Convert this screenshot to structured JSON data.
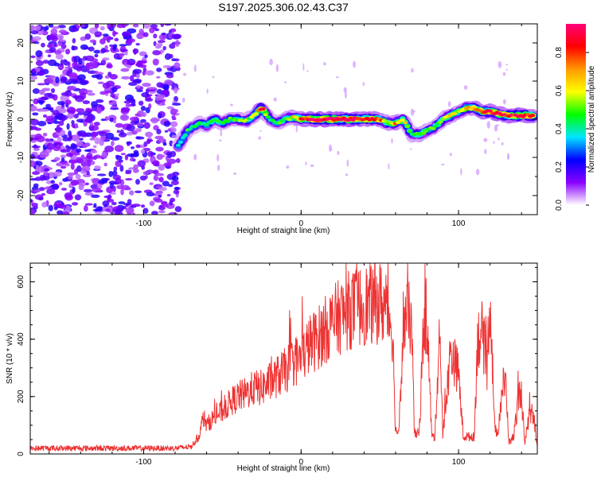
{
  "figure": {
    "title": "S197.2025.306.02.43.C37"
  },
  "chart_data": [
    {
      "type": "heatmap",
      "title": "S197.2025.306.02.43.C37",
      "xlabel": "Height of straight line (km)",
      "ylabel": "Frequency (Hz)",
      "xlim": [
        -172,
        150
      ],
      "ylim": [
        -25,
        25
      ],
      "xticks": [
        -100,
        0,
        100
      ],
      "yticks": [
        -20,
        -10,
        0,
        10,
        20
      ],
      "description_signal": "noise below about -80 km; a narrow band near 0 Hz from -80 km to 150 km",
      "ridge": {
        "x": [
          -78,
          -72,
          -65,
          -60,
          -55,
          -50,
          -45,
          -40,
          -35,
          -30,
          -25,
          -20,
          -15,
          -10,
          -5,
          0,
          10,
          20,
          30,
          40,
          50,
          55,
          60,
          65,
          70,
          75,
          80,
          85,
          90,
          95,
          100,
          105,
          110,
          115,
          120,
          130,
          140,
          148
        ],
        "freq": [
          -7,
          -3,
          -1,
          -1.5,
          0,
          -1,
          0,
          0,
          -0.5,
          1,
          3,
          0,
          -1,
          0,
          0.5,
          0,
          0,
          0,
          0,
          0,
          0,
          -1,
          -1,
          0,
          -4,
          -4,
          -3,
          -2,
          0,
          1,
          2,
          3,
          3,
          2,
          2,
          1,
          1,
          1
        ],
        "amplitude": [
          0.4,
          0.45,
          0.4,
          0.45,
          0.5,
          0.45,
          0.5,
          0.5,
          0.5,
          0.55,
          0.85,
          0.4,
          0.45,
          0.5,
          0.6,
          0.8,
          0.95,
          0.95,
          0.95,
          0.85,
          0.8,
          0.55,
          0.7,
          0.6,
          0.45,
          0.55,
          0.5,
          0.5,
          0.55,
          0.6,
          0.6,
          0.65,
          0.75,
          0.8,
          0.85,
          0.85,
          0.9,
          0.8
        ]
      },
      "colorbar": {
        "label": "Normalized spectral amplitude",
        "range": [
          0,
          0.95
        ],
        "ticks": [
          "0.0",
          "0.2",
          "0.4",
          "0.6",
          "0.8"
        ],
        "tick_values": [
          0,
          0.2,
          0.4,
          0.6,
          0.8
        ],
        "colors": [
          "#ffffff",
          "#8a00ff",
          "#0000ff",
          "#00e5ff",
          "#00ff00",
          "#ffff00",
          "#ff9900",
          "#ff0000",
          "#ff0077"
        ]
      }
    },
    {
      "type": "line",
      "title": "",
      "xlabel": "Height of straight line (km)",
      "ylabel": "SNR (10 * v/v)",
      "xlim": [
        -172,
        150
      ],
      "ylim": [
        0,
        665
      ],
      "xticks": [
        -100,
        0,
        100
      ],
      "yticks": [
        0,
        200,
        400,
        600
      ],
      "color": "#ee3333",
      "series": [
        {
          "name": "SNR",
          "x": [
            -172,
            -150,
            -120,
            -100,
            -80,
            -70,
            -65,
            -62,
            -60,
            -55,
            -50,
            -45,
            -40,
            -35,
            -30,
            -25,
            -20,
            -15,
            -10,
            -5,
            0,
            5,
            10,
            15,
            20,
            25,
            30,
            35,
            40,
            45,
            50,
            55,
            58,
            60,
            62,
            65,
            70,
            72,
            75,
            78,
            80,
            83,
            85,
            88,
            90,
            95,
            100,
            103,
            105,
            110,
            112,
            115,
            118,
            120,
            123,
            125,
            128,
            130,
            132,
            135,
            138,
            140,
            142,
            145,
            148,
            150
          ],
          "y": [
            20,
            20,
            20,
            20,
            20,
            25,
            60,
            130,
            100,
            130,
            150,
            180,
            200,
            210,
            230,
            230,
            250,
            270,
            290,
            320,
            330,
            380,
            400,
            430,
            460,
            480,
            500,
            510,
            520,
            520,
            530,
            500,
            440,
            80,
            80,
            470,
            470,
            70,
            70,
            470,
            460,
            60,
            60,
            450,
            60,
            360,
            280,
            60,
            60,
            60,
            400,
            420,
            300,
            560,
            80,
            80,
            240,
            240,
            40,
            60,
            200,
            210,
            30,
            140,
            120,
            30
          ]
        }
      ]
    }
  ]
}
